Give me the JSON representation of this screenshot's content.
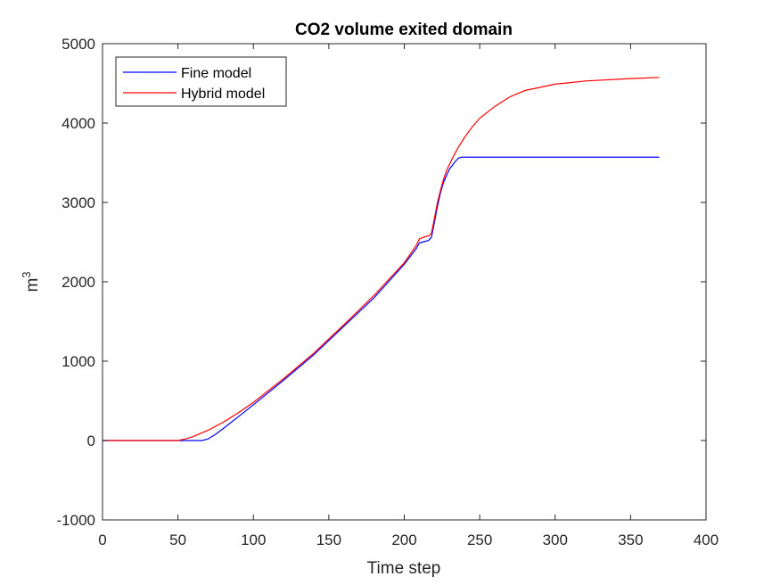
{
  "chart_data": {
    "type": "line",
    "title": "CO2 volume exited domain",
    "xlabel": "Time step",
    "ylabel_base": "m",
    "ylabel_sup": "3",
    "xlim": [
      0,
      400
    ],
    "ylim": [
      -1000,
      5000
    ],
    "xticks": [
      "0",
      "50",
      "100",
      "150",
      "200",
      "250",
      "300",
      "350",
      "400"
    ],
    "yticks": [
      "-1000",
      "0",
      "1000",
      "2000",
      "3000",
      "4000",
      "5000"
    ],
    "grid": false,
    "legend": "top-left",
    "series": [
      {
        "name": "Fine model",
        "color": "#0000ff",
        "x": [
          0,
          50,
          60,
          66,
          70,
          75,
          80,
          90,
          100,
          120,
          140,
          160,
          180,
          200,
          208,
          210,
          214,
          216,
          218,
          220,
          222,
          224,
          226,
          228,
          230,
          232,
          234,
          236,
          238,
          250,
          300,
          350,
          369
        ],
        "y": [
          0,
          0,
          0,
          0,
          20,
          80,
          150,
          300,
          450,
          760,
          1080,
          1440,
          1800,
          2220,
          2420,
          2490,
          2510,
          2520,
          2560,
          2750,
          2950,
          3120,
          3250,
          3340,
          3420,
          3470,
          3520,
          3560,
          3570,
          3570,
          3570,
          3570,
          3570
        ]
      },
      {
        "name": "Hybrid model",
        "color": "#ff0000",
        "x": [
          0,
          40,
          50,
          55,
          60,
          70,
          80,
          90,
          100,
          120,
          140,
          160,
          180,
          200,
          208,
          210,
          214,
          216,
          218,
          220,
          222,
          224,
          226,
          228,
          232,
          236,
          240,
          245,
          250,
          260,
          270,
          280,
          300,
          320,
          350,
          369
        ],
        "y": [
          0,
          0,
          0,
          20,
          50,
          130,
          230,
          350,
          480,
          780,
          1100,
          1460,
          1830,
          2240,
          2460,
          2540,
          2570,
          2575,
          2610,
          2800,
          3000,
          3150,
          3290,
          3400,
          3560,
          3700,
          3820,
          3950,
          4060,
          4210,
          4330,
          4410,
          4490,
          4530,
          4560,
          4575
        ]
      }
    ]
  }
}
